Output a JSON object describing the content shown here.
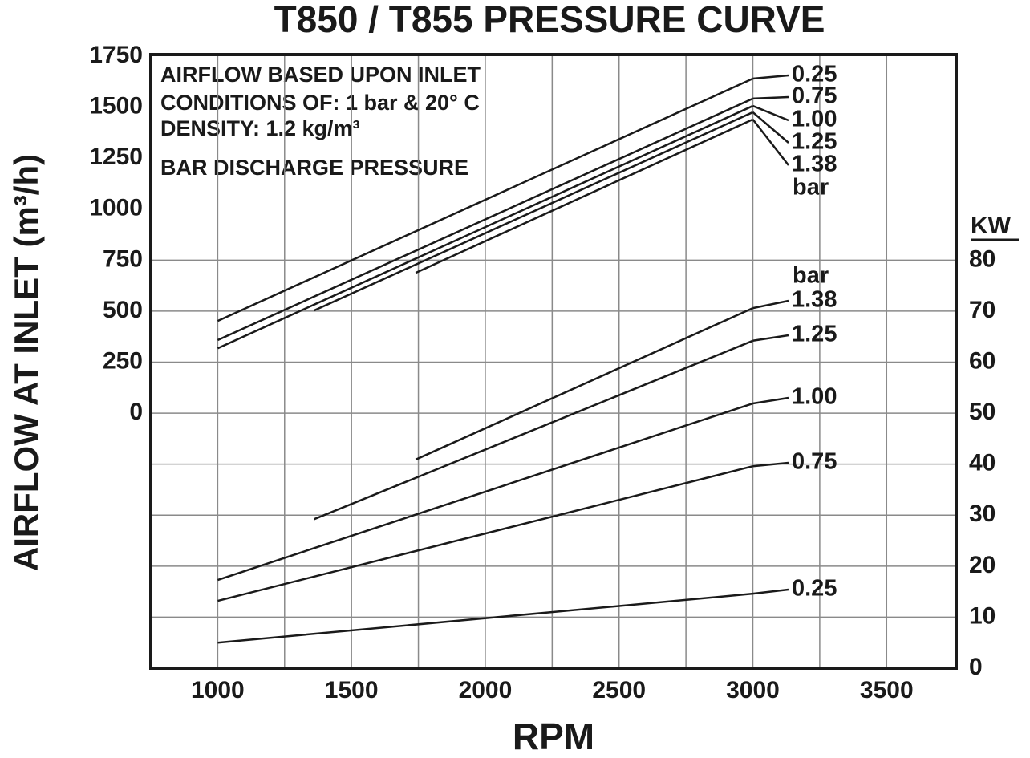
{
  "chart_data": {
    "type": "line",
    "title": "T850 / T855 PRESSURE CURVE",
    "x_label": "RPM",
    "y_label": "AIRFLOW AT INLET (m³/h)",
    "y2_label": "KW",
    "annotations": [
      "AIRFLOW BASED UPON INLET",
      "CONDITIONS OF:  1 bar & 20° C",
      "DENSITY:  1.2 kg/m³",
      "BAR DISCHARGE PRESSURE"
    ],
    "unit_label": "bar",
    "color": "#1a1a1a",
    "grid": true,
    "xlim": [
      750,
      3760
    ],
    "xticks": [
      1000,
      1500,
      2000,
      2500,
      3000,
      3500
    ],
    "x_minor_grid": [
      1250,
      1750,
      2250,
      2750,
      3250
    ],
    "ylim": [
      -1250,
      1750
    ],
    "yticks": [
      0,
      250,
      500,
      750,
      1000,
      1250,
      1500,
      1750
    ],
    "y2lim": [
      0,
      120
    ],
    "y2ticks": [
      0,
      10,
      20,
      30,
      40,
      50,
      60,
      70,
      80
    ],
    "series": [
      {
        "name": "0.25",
        "x": [
          1000,
          3000
        ],
        "values": [
          452,
          1640
        ]
      },
      {
        "name": "0.75",
        "x": [
          1000,
          3000
        ],
        "values": [
          358,
          1542
        ]
      },
      {
        "name": "1.00",
        "x": [
          1000,
          3000
        ],
        "values": [
          318,
          1506
        ]
      },
      {
        "name": "1.25",
        "x": [
          1360,
          3000
        ],
        "values": [
          503,
          1475
        ]
      },
      {
        "name": "1.38",
        "x": [
          1740,
          3000
        ],
        "values": [
          688,
          1440
        ]
      },
      {
        "name": "1.38",
        "axis": "y2",
        "x": [
          1740,
          3000
        ],
        "values": [
          40.9,
          70.6
        ]
      },
      {
        "name": "1.25",
        "axis": "y2",
        "x": [
          1360,
          3000
        ],
        "values": [
          29.2,
          64.2
        ]
      },
      {
        "name": "1.00",
        "axis": "y2",
        "x": [
          1000,
          3000
        ],
        "values": [
          17.3,
          51.9
        ]
      },
      {
        "name": "0.75",
        "axis": "y2",
        "x": [
          1000,
          3000
        ],
        "values": [
          13.2,
          39.6
        ]
      },
      {
        "name": "0.25",
        "axis": "y2",
        "x": [
          1000,
          3000
        ],
        "values": [
          5.0,
          14.6
        ]
      }
    ]
  }
}
